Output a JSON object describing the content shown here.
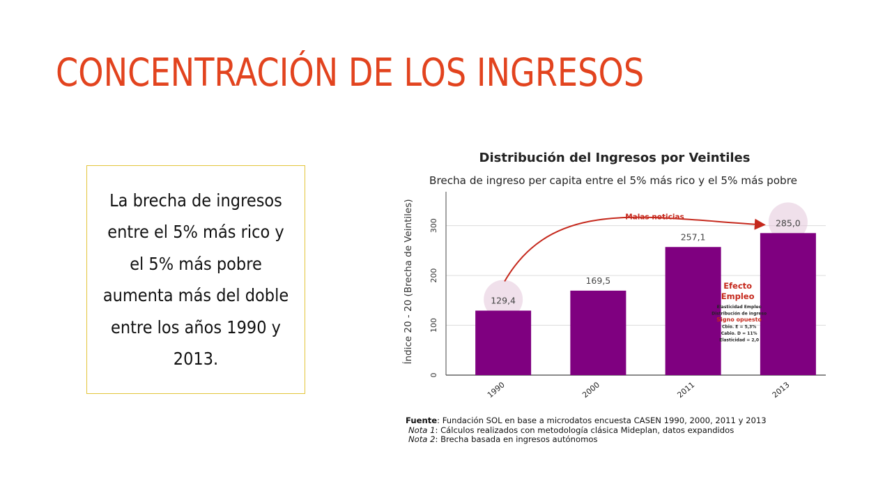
{
  "slide": {
    "title": "CONCENTRACIÓN DE LOS INGRESOS",
    "body": "La brecha de ingresos entre el 5% más rico y el 5% más pobre aumenta más del doble entre los años 1990 y 2013."
  },
  "notes": {
    "fuente_label": "Fuente",
    "fuente_text": ": Fundación SOL en base a microdatos encuesta CASEN 1990, 2000, 2011 y 2013",
    "nota1_label": "Nota 1",
    "nota1_text": ": Cálculos realizados con metodología clásica Mideplan, datos expandidos",
    "nota2_label": "Nota 2",
    "nota2_text": ": Brecha basada en ingresos autónomos"
  },
  "colors": {
    "title": "#e2431e",
    "bar": "#7f0080",
    "arrow": "#c5281c",
    "highlight": "#e3c6db",
    "box_border": "#e3c53a"
  },
  "chart_data": {
    "type": "bar",
    "title": "Distribución del Ingresos por Veintiles",
    "subtitle": "Brecha de ingreso per capita entre el 5% más rico y el 5% más pobre",
    "categories": [
      "1990",
      "2000",
      "2011",
      "2013"
    ],
    "values": [
      129.4,
      169.5,
      257.1,
      285.0
    ],
    "value_labels": [
      "129,4",
      "169,5",
      "257,1",
      "285,0"
    ],
    "xlabel": "",
    "ylabel": "Índice 20 - 20 (Brecha de Veintiles)",
    "ylim": [
      0,
      375
    ],
    "yticks": [
      0,
      100,
      200,
      300
    ],
    "grid": true,
    "annotations": {
      "arrow_label": "Malas noticias",
      "efecto_title": [
        "Efecto",
        "Empleo"
      ],
      "efecto_lines": [
        "Elasticidad Empleo",
        "Distribución de ingreso",
        "Signo opuesto",
        "Cbio. E = 5,3%",
        "Cabio. D = 11%",
        "Elasticidad = 2,0"
      ]
    }
  }
}
